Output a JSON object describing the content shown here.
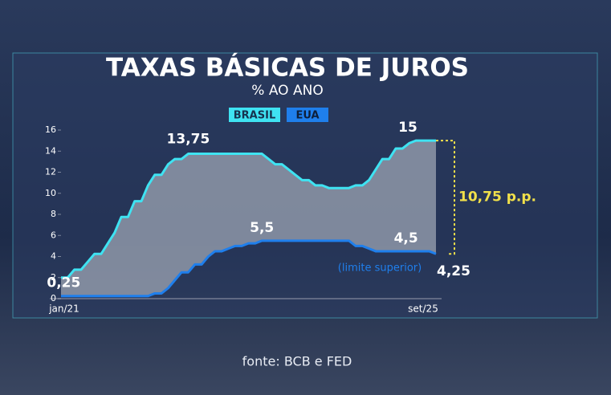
{
  "chart_data": {
    "type": "line",
    "title": "TAXAS BÁSICAS DE JUROS",
    "subtitle": "% AO ANO",
    "categories": [
      "jan/21",
      null,
      null,
      null,
      null,
      null,
      null,
      null,
      null,
      null,
      null,
      null,
      null,
      null,
      null,
      null,
      null,
      null,
      null,
      null,
      null,
      null,
      null,
      null,
      null,
      null,
      null,
      null,
      null,
      null,
      null,
      null,
      null,
      null,
      null,
      null,
      null,
      null,
      null,
      null,
      null,
      null,
      null,
      null,
      null,
      null,
      null,
      null,
      null,
      null,
      null,
      null,
      null,
      null,
      null,
      null,
      "set/25"
    ],
    "series": [
      {
        "name": "BRASIL",
        "color": "#3fe3f2",
        "values": [
          2,
          2,
          2.75,
          2.75,
          3.5,
          4.25,
          4.25,
          5.25,
          6.25,
          7.75,
          7.75,
          9.25,
          9.25,
          10.75,
          11.75,
          11.75,
          12.75,
          13.25,
          13.25,
          13.75,
          13.75,
          13.75,
          13.75,
          13.75,
          13.75,
          13.75,
          13.75,
          13.75,
          13.75,
          13.75,
          13.75,
          13.25,
          12.75,
          12.75,
          12.25,
          11.75,
          11.25,
          11.25,
          10.75,
          10.75,
          10.5,
          10.5,
          10.5,
          10.5,
          10.75,
          10.75,
          11.25,
          12.25,
          13.25,
          13.25,
          14.25,
          14.25,
          14.75,
          15,
          15,
          15,
          15
        ],
        "value_labels": [
          null,
          null,
          null,
          null,
          null,
          null,
          null,
          null,
          null,
          null,
          null,
          null,
          null,
          null,
          null,
          null,
          null,
          null,
          null,
          "13,75",
          null,
          null,
          null,
          null,
          null,
          null,
          null,
          null,
          null,
          null,
          null,
          null,
          null,
          null,
          null,
          null,
          null,
          null,
          null,
          null,
          null,
          null,
          null,
          null,
          null,
          null,
          null,
          null,
          null,
          null,
          null,
          null,
          null,
          "15",
          null,
          null,
          null
        ]
      },
      {
        "name": "EUA",
        "color": "#1f7fec",
        "values": [
          0.25,
          0.25,
          0.25,
          0.25,
          0.25,
          0.25,
          0.25,
          0.25,
          0.25,
          0.25,
          0.25,
          0.25,
          0.25,
          0.25,
          0.5,
          0.5,
          1,
          1.75,
          2.5,
          2.5,
          3.25,
          3.25,
          4,
          4.5,
          4.5,
          4.75,
          5,
          5,
          5.25,
          5.25,
          5.5,
          5.5,
          5.5,
          5.5,
          5.5,
          5.5,
          5.5,
          5.5,
          5.5,
          5.5,
          5.5,
          5.5,
          5.5,
          5.5,
          5,
          5,
          4.75,
          4.5,
          4.5,
          4.5,
          4.5,
          4.5,
          4.5,
          4.5,
          4.5,
          4.5,
          4.25
        ],
        "value_labels": [
          null,
          null,
          null,
          null,
          "0,25",
          null,
          null,
          null,
          null,
          null,
          null,
          null,
          null,
          null,
          null,
          null,
          null,
          null,
          null,
          null,
          null,
          null,
          null,
          null,
          null,
          null,
          null,
          null,
          null,
          null,
          "5,5",
          null,
          null,
          null,
          null,
          null,
          null,
          null,
          null,
          null,
          null,
          null,
          null,
          null,
          null,
          null,
          null,
          null,
          null,
          null,
          null,
          null,
          "4,5",
          null,
          null,
          null,
          "4,25"
        ]
      }
    ],
    "ylim": [
      0,
      16
    ],
    "yticks": [
      0,
      2,
      4,
      6,
      8,
      10,
      12,
      14,
      16
    ],
    "spread_label": "10,75 p.p.",
    "note": "(limite superior)",
    "source": "fonte: BCB e FED"
  }
}
